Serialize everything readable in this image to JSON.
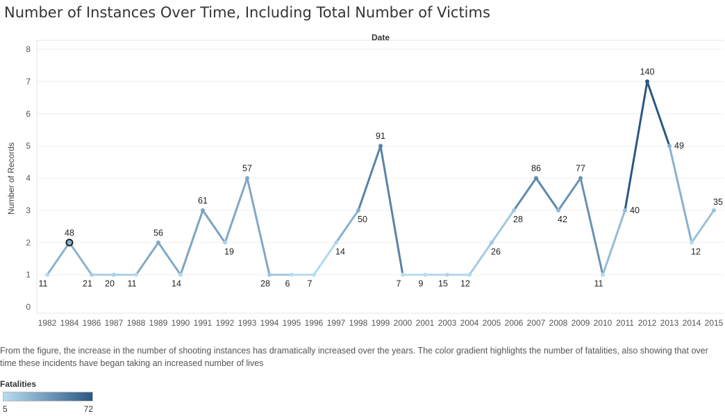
{
  "title": "Number of Instances Over Time, Including Total Number of Victims",
  "caption": "From the figure, the increase in the number of shooting instances has dramatically increased over the years. The color gradient highlights the number of fatalities, also showing that over time these incidents have began taking an increased number of lives",
  "legend": {
    "title": "Fatalities",
    "min_label": "5",
    "max_label": "72",
    "min": 5,
    "max": 72,
    "color_low": "#b9ddf0",
    "color_high": "#2a5783"
  },
  "chart_data": {
    "type": "line",
    "title": "Number of Instances Over Time, Including Total Number of Victims",
    "xlabel": "Date",
    "ylabel": "Number of Records",
    "ylim": [
      0,
      8
    ],
    "yticks": [
      "0",
      "1",
      "2",
      "3",
      "4",
      "5",
      "6",
      "7",
      "8"
    ],
    "grid": true,
    "legend_position": "bottom-left",
    "x": [
      "1982",
      "1984",
      "1986",
      "1987",
      "1988",
      "1989",
      "1990",
      "1991",
      "1992",
      "1993",
      "1994",
      "1995",
      "1996",
      "1997",
      "1998",
      "1999",
      "2000",
      "2001",
      "2003",
      "2004",
      "2005",
      "2006",
      "2007",
      "2008",
      "2009",
      "2010",
      "2011",
      "2012",
      "2013",
      "2014",
      "2015"
    ],
    "values": [
      1,
      2,
      1,
      1,
      1,
      2,
      1,
      3,
      2,
      4,
      1,
      1,
      1,
      2,
      3,
      5,
      1,
      1,
      1,
      1,
      2,
      3,
      4,
      3,
      4,
      1,
      3,
      7,
      5,
      2,
      3
    ],
    "labels": [
      "11",
      "48",
      "21",
      "20",
      "11",
      "56",
      "14",
      "61",
      "19",
      "57",
      "28",
      "6",
      "7",
      "14",
      "50",
      "91",
      "7",
      "9",
      "15",
      "12",
      "26",
      "28",
      "86",
      "42",
      "77",
      "11",
      "40",
      "140",
      "49",
      "12",
      "35"
    ],
    "highlighted_point": "1984"
  }
}
